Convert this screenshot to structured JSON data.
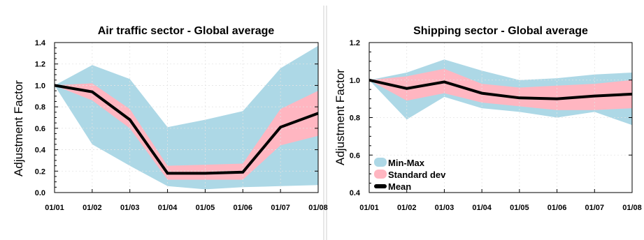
{
  "chart_data": [
    {
      "type": "area",
      "title": "Air traffic sector - Global average",
      "xlabel": "",
      "ylabel": "Adjustment Factor",
      "categories": [
        "01/01",
        "01/02",
        "01/03",
        "01/04",
        "01/05",
        "01/06",
        "01/07",
        "01/08"
      ],
      "ylim": [
        0.0,
        1.4
      ],
      "yticks": [
        "0.0",
        "0.2",
        "0.4",
        "0.6",
        "0.8",
        "1.0",
        "1.2",
        "1.4"
      ],
      "grid": "dotted",
      "legend": null,
      "series": [
        {
          "name": "Min-Max",
          "color": "#add8e6",
          "lower": [
            1.0,
            0.45,
            0.25,
            0.06,
            0.03,
            0.05,
            0.06,
            0.07
          ],
          "upper": [
            1.0,
            1.19,
            1.06,
            0.61,
            0.68,
            0.76,
            1.16,
            1.37
          ]
        },
        {
          "name": "Standard dev",
          "color": "#ffb6c1",
          "lower": [
            1.0,
            0.86,
            0.6,
            0.12,
            0.12,
            0.12,
            0.44,
            0.53
          ],
          "upper": [
            1.0,
            1.02,
            0.78,
            0.25,
            0.26,
            0.27,
            0.78,
            0.95
          ]
        },
        {
          "name": "Mean",
          "color": "#000000",
          "values": [
            1.0,
            0.94,
            0.68,
            0.18,
            0.18,
            0.19,
            0.61,
            0.74
          ]
        }
      ]
    },
    {
      "type": "area",
      "title": "Shipping sector - Global average",
      "xlabel": "",
      "ylabel": "Adjustment Factor",
      "categories": [
        "01/01",
        "01/02",
        "01/03",
        "01/04",
        "01/05",
        "01/06",
        "01/07",
        "01/08"
      ],
      "ylim": [
        0.4,
        1.2
      ],
      "yticks": [
        "0.4",
        "0.6",
        "0.8",
        "1.0",
        "1.2"
      ],
      "grid": "dotted",
      "legend": "bottom-left",
      "series": [
        {
          "name": "Min-Max",
          "color": "#add8e6",
          "lower": [
            1.0,
            0.79,
            0.91,
            0.85,
            0.83,
            0.8,
            0.83,
            0.76
          ],
          "upper": [
            1.0,
            1.04,
            1.11,
            1.05,
            1.0,
            1.01,
            1.03,
            1.04
          ]
        },
        {
          "name": "Standard dev",
          "color": "#ffb6c1",
          "lower": [
            1.0,
            0.89,
            0.93,
            0.88,
            0.86,
            0.84,
            0.84,
            0.85
          ],
          "upper": [
            1.0,
            1.02,
            1.06,
            0.98,
            0.96,
            0.97,
            0.98,
            1.0
          ]
        },
        {
          "name": "Mean",
          "color": "#000000",
          "values": [
            1.0,
            0.955,
            0.99,
            0.93,
            0.905,
            0.9,
            0.915,
            0.925
          ]
        }
      ]
    }
  ]
}
